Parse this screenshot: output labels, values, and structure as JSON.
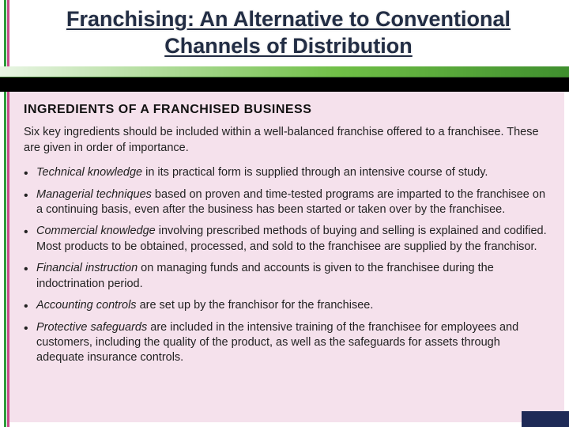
{
  "title": "Franchising: An Alternative to Conventional Channels of Distribution",
  "panel": {
    "heading": "INGREDIENTS OF A FRANCHISED BUSINESS",
    "intro": "Six key ingredients should be included within a well-balanced franchise offered to a franchisee. These are given in order of importance.",
    "items": [
      {
        "lead": "Technical knowledge",
        "rest": " in its practical form is supplied through an intensive course of study."
      },
      {
        "lead": "Managerial techniques",
        "rest": " based on proven and time-tested programs are imparted to the franchisee on a continuing basis, even after the business has been started or taken over by the franchisee."
      },
      {
        "lead": "Commercial knowledge",
        "rest": " involving prescribed methods of buying and selling is explained and codified. Most products to be obtained, processed, and sold to the franchisee are supplied by the franchisor."
      },
      {
        "lead": "Financial instruction",
        "rest": " on managing funds and accounts is given to the franchisee during the indoctrination period."
      },
      {
        "lead": "Accounting controls",
        "rest": " are set up by the franchisor for the franchisee."
      },
      {
        "lead": "Protective safeguards",
        "rest": " are included in the intensive training of the franchisee for employees and customers, including the quality of the product, as well as the safeguards for assets through adequate insurance controls."
      }
    ]
  },
  "colors": {
    "panel_bg": "#f5e1ec",
    "green_line": "#2e9b3a",
    "pink_line": "#c94b8c",
    "footer_bg": "#1e2a57"
  }
}
